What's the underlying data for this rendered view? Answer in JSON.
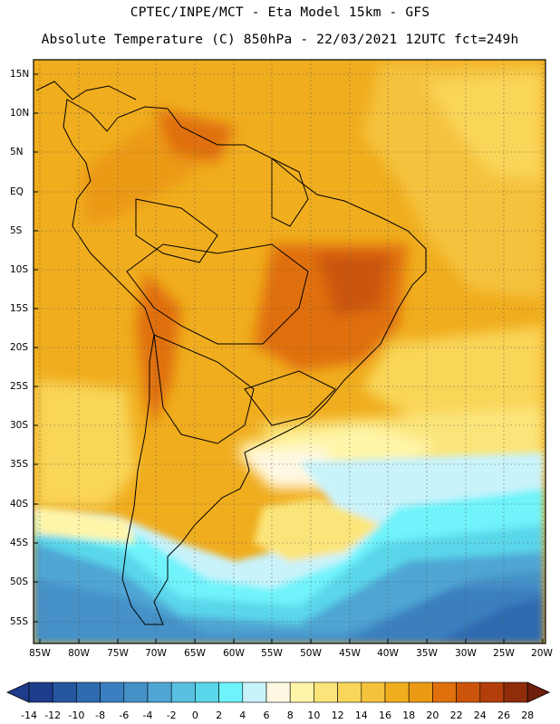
{
  "header": {
    "line1": "CPTEC/INPE/MCT -  Eta Model 15km - GFS",
    "line2": "Absolute Temperature (C) 850hPa - 22/03/2021 12UTC fct=249h"
  },
  "map": {
    "region": "South America",
    "field": "850hPa absolute temperature",
    "lat_labels": [
      "15N",
      "10N",
      "5N",
      "EQ",
      "5S",
      "10S",
      "15S",
      "20S",
      "25S",
      "30S",
      "35S",
      "40S",
      "45S",
      "50S",
      "55S"
    ],
    "lon_labels": [
      "85W",
      "80W",
      "75W",
      "70W",
      "65W",
      "60W",
      "55W",
      "50W",
      "45W",
      "40W",
      "35W",
      "30W",
      "25W",
      "20W"
    ]
  },
  "colorbar": {
    "labels": [
      "-14",
      "-12",
      "-10",
      "-8",
      "-6",
      "-4",
      "-2",
      "0",
      "2",
      "4",
      "6",
      "8",
      "10",
      "12",
      "14",
      "16",
      "18",
      "20",
      "22",
      "24",
      "26",
      "28"
    ],
    "colors": [
      "#1e3c8c",
      "#2556a0",
      "#2e6bb0",
      "#3a7fbf",
      "#4491c8",
      "#4fa6d4",
      "#58c0e0",
      "#5ad6ea",
      "#6ff3fb",
      "#c9f3fb",
      "#fff8e2",
      "#fff5a8",
      "#fbe57a",
      "#f9d559",
      "#f5c23c",
      "#f0ad1e",
      "#eb9a13",
      "#e0700b",
      "#cc540a",
      "#b23e09",
      "#8f2d0b",
      "#6e1f0c"
    ]
  }
}
